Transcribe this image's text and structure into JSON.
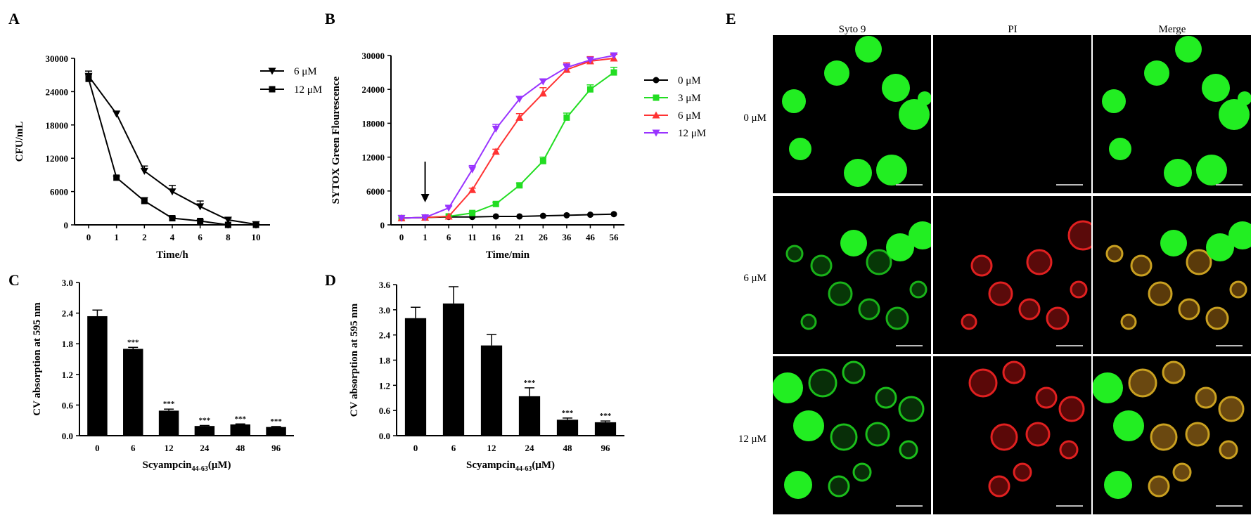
{
  "panels": {
    "A": "A",
    "B": "B",
    "C": "C",
    "D": "D",
    "E": "E"
  },
  "chart_data": [
    {
      "id": "A",
      "type": "line",
      "xlabel": "Time/h",
      "ylabel": "CFU/mL",
      "x": [
        "0",
        "1",
        "2",
        "4",
        "6",
        "8",
        "10"
      ],
      "ylim": [
        0,
        30000
      ],
      "yticks": [
        "0",
        "6000",
        "12000",
        "18000",
        "24000",
        "30000"
      ],
      "legend_position": "top-right",
      "series": [
        {
          "name": "6 μM",
          "marker": "triangle-down",
          "values": [
            26800,
            20000,
            9700,
            6000,
            3300,
            900,
            100
          ],
          "errors": [
            900,
            500,
            900,
            1100,
            1000,
            300,
            100
          ]
        },
        {
          "name": "12 μM",
          "marker": "square",
          "values": [
            26300,
            8500,
            4300,
            1200,
            700,
            0,
            0
          ],
          "errors": [
            700,
            300,
            600,
            200,
            200,
            0,
            0
          ]
        }
      ]
    },
    {
      "id": "B",
      "type": "line",
      "xlabel": "Time/min",
      "ylabel": "SYTOX Green Flourescence",
      "x": [
        "0",
        "1",
        "6",
        "11",
        "16",
        "21",
        "26",
        "36",
        "46",
        "56"
      ],
      "ylim": [
        0,
        30000
      ],
      "yticks": [
        "0",
        "6000",
        "12000",
        "18000",
        "24000",
        "30000"
      ],
      "legend_position": "right",
      "arrow_at": "1",
      "series": [
        {
          "name": "0 μM",
          "marker": "circle",
          "color": "#000000",
          "values": [
            1200,
            1300,
            1400,
            1400,
            1500,
            1500,
            1600,
            1700,
            1800,
            1900
          ],
          "errors": [
            0,
            0,
            0,
            0,
            0,
            0,
            0,
            0,
            0,
            0
          ]
        },
        {
          "name": "3 μM",
          "marker": "square",
          "color": "#22dd22",
          "values": [
            1200,
            1300,
            1500,
            2100,
            3700,
            7000,
            11300,
            19000,
            24000,
            27000
          ],
          "errors": [
            0,
            0,
            0,
            200,
            300,
            400,
            700,
            800,
            800,
            900
          ]
        },
        {
          "name": "6 μM",
          "marker": "triangle-up",
          "color": "#ff3333",
          "values": [
            1200,
            1300,
            1500,
            6200,
            13000,
            19000,
            23300,
            27500,
            29000,
            29500
          ],
          "errors": [
            0,
            0,
            0,
            300,
            400,
            700,
            1000,
            1200,
            800,
            700
          ]
        },
        {
          "name": "12 μM",
          "marker": "triangle-down",
          "color": "#9933ff",
          "values": [
            1200,
            1300,
            3000,
            9800,
            17000,
            22300,
            25400,
            27900,
            29200,
            30000
          ],
          "errors": [
            0,
            0,
            300,
            700,
            800,
            400,
            400,
            600,
            500,
            400
          ]
        }
      ]
    },
    {
      "id": "C",
      "type": "bar",
      "xlabel_main": "Scyampcin",
      "xlabel_sub": "44-63",
      "xlabel_tail": "(μM)",
      "ylabel": "CV absorption at 595 nm",
      "categories": [
        "0",
        "6",
        "12",
        "24",
        "48",
        "96"
      ],
      "values": [
        2.34,
        1.7,
        0.49,
        0.19,
        0.22,
        0.17
      ],
      "errors": [
        0.12,
        0.03,
        0.03,
        0.01,
        0.01,
        0.01
      ],
      "significance": [
        "",
        "***",
        "***",
        "***",
        "***",
        "***"
      ],
      "ylim": [
        0,
        3.0
      ],
      "yticks": [
        "0.0",
        "0.6",
        "1.2",
        "1.8",
        "2.4",
        "3.0"
      ]
    },
    {
      "id": "D",
      "type": "bar",
      "xlabel_main": "Scyampcin",
      "xlabel_sub": "44-63",
      "xlabel_tail": "(μM)",
      "ylabel": "CV absorption at 595 nm",
      "categories": [
        "0",
        "6",
        "12",
        "24",
        "48",
        "96"
      ],
      "values": [
        2.8,
        3.15,
        2.15,
        0.94,
        0.38,
        0.32
      ],
      "errors": [
        0.26,
        0.4,
        0.26,
        0.2,
        0.04,
        0.03
      ],
      "significance": [
        "",
        "",
        "",
        "***",
        "***",
        "***"
      ],
      "ylim": [
        0,
        3.6
      ],
      "yticks": [
        "0.0",
        "0.6",
        "1.2",
        "1.8",
        "2.4",
        "3.0",
        "3.6"
      ]
    }
  ],
  "microscopy": {
    "columns": [
      "Syto 9",
      "PI",
      "Merge"
    ],
    "rows": [
      "0 μM",
      "6 μM",
      "12 μM"
    ],
    "colors": {
      "background": "#000000",
      "green": "#22ee22",
      "red": "#e02020",
      "merge": "#c9a020",
      "scale_bar": "#bbbbbb"
    }
  }
}
